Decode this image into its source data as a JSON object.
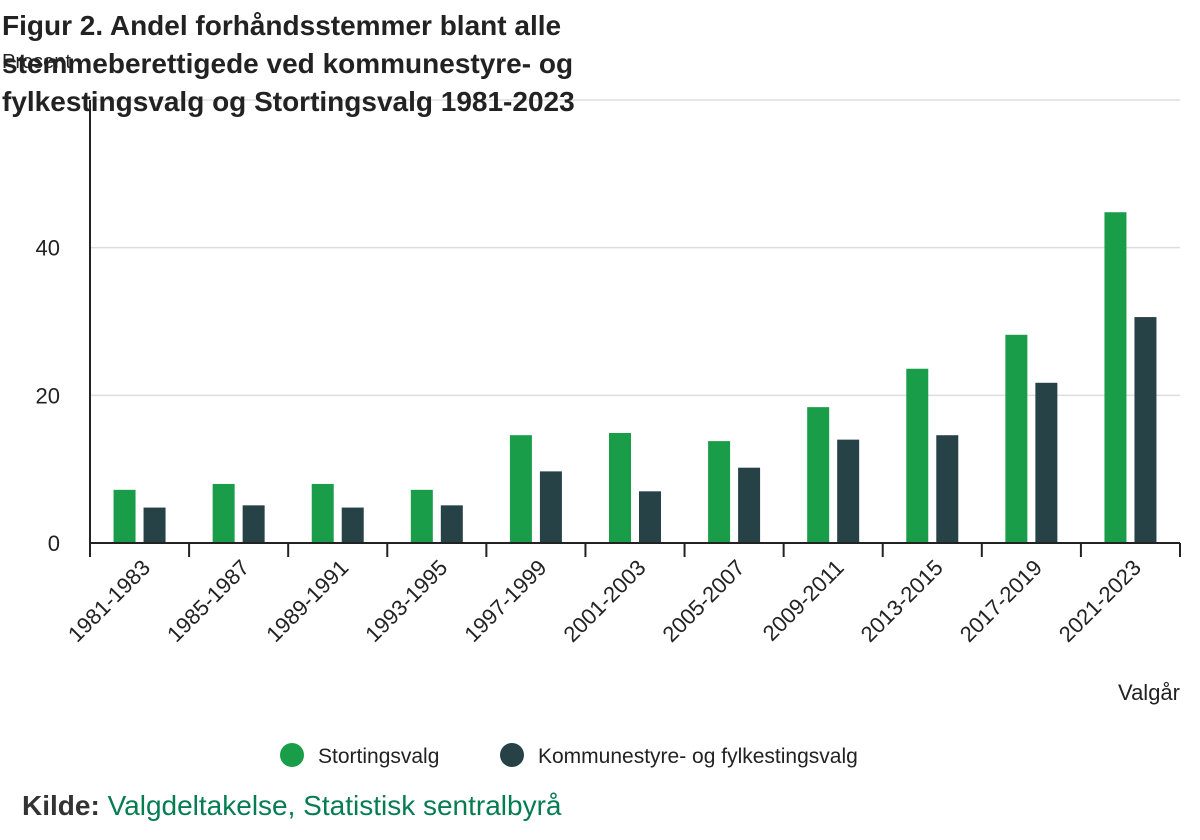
{
  "chart_data": {
    "type": "bar",
    "title_lines": [
      "Figur 2. Andel forhåndsstemmer blant alle",
      "stemmeberettigede ved kommunestyre- og",
      "fylkestingsvalg og Stortingsvalg 1981-2023"
    ],
    "ylabel": "Prosent",
    "xlabel": "Valgår",
    "ylim": [
      0,
      60
    ],
    "yticks": [
      0,
      20,
      40
    ],
    "grid": true,
    "legend_position": "bottom-center",
    "categories": [
      "1981-1983",
      "1985-1987",
      "1989-1991",
      "1993-1995",
      "1997-1999",
      "2001-2003",
      "2005-2007",
      "2009-2011",
      "2013-2015",
      "2017-2019",
      "2021-2023"
    ],
    "series": [
      {
        "name": "Stortingsvalg",
        "color": "#1a9d49",
        "values": [
          7.2,
          8.0,
          8.0,
          7.2,
          14.6,
          14.9,
          13.8,
          18.4,
          23.6,
          28.2,
          44.8
        ]
      },
      {
        "name": "Kommunestyre- og fylkestingsvalg",
        "color": "#274247",
        "values": [
          4.8,
          5.1,
          4.8,
          5.1,
          9.7,
          7.0,
          10.2,
          14.0,
          14.6,
          21.7,
          30.6
        ]
      }
    ]
  },
  "source": {
    "prefix": "Kilde:",
    "text": "Valgdeltakelse, Statistisk sentralbyrå"
  }
}
